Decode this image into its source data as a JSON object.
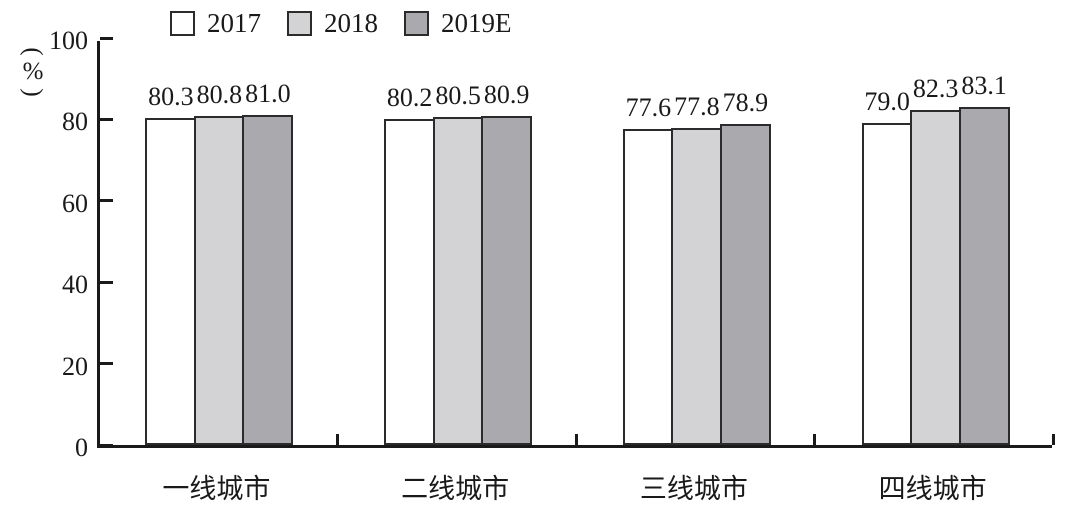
{
  "chart_data": {
    "type": "bar",
    "title": "",
    "xlabel": "",
    "ylabel": "(%)",
    "ylim": [
      0,
      100
    ],
    "yticks": [
      0,
      20,
      40,
      60,
      80,
      100
    ],
    "grid": false,
    "legend_position": "top-left",
    "value_label_decimals": 1,
    "categories": [
      "一线城市",
      "二线城市",
      "三线城市",
      "四线城市"
    ],
    "series": [
      {
        "name": "2017",
        "color": "#ffffff",
        "values": [
          80.3,
          80.2,
          77.6,
          79.0
        ]
      },
      {
        "name": "2018",
        "color": "#d3d3d5",
        "values": [
          80.8,
          80.5,
          77.8,
          82.3
        ]
      },
      {
        "name": "2019E",
        "color": "#aaaaae",
        "values": [
          81.0,
          80.9,
          78.9,
          83.1
        ]
      }
    ],
    "colors": {
      "axis": "#1a1a1a",
      "bar_border": "#2b2b2b",
      "text": "#1a1a1a",
      "background": "#ffffff"
    }
  }
}
